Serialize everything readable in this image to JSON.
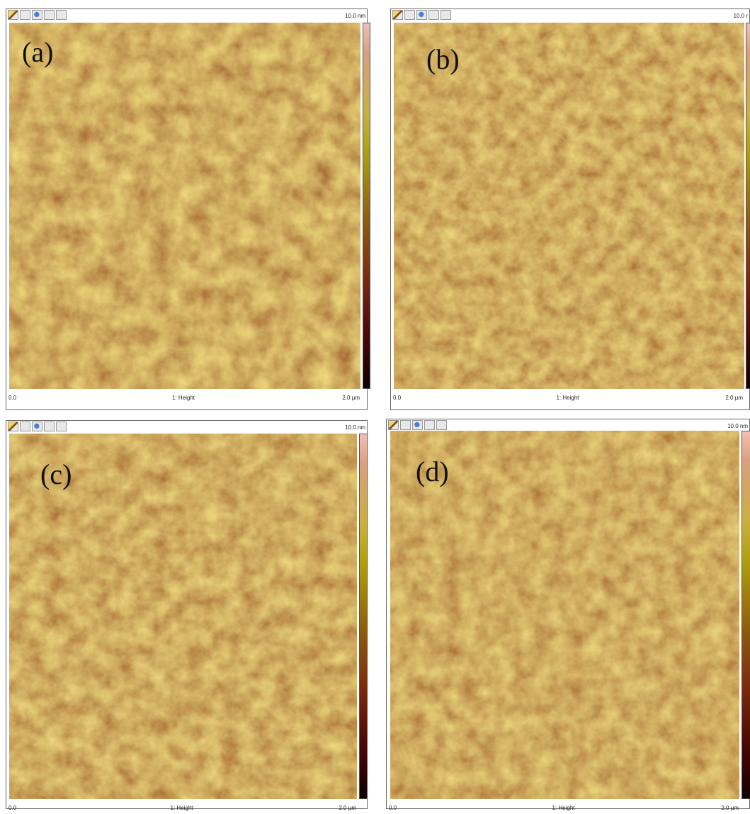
{
  "panels": [
    {
      "label": "(a)",
      "scale_max": "10.0 nm",
      "scale_min": "0.0",
      "channel": "1: Height",
      "scan_size": "2.0 µm"
    },
    {
      "label": "(b)",
      "scale_max": "10.0 r",
      "scale_min": "0.0",
      "channel": "1: Height",
      "scan_size": "2.0 µm"
    },
    {
      "label": "(c)",
      "scale_max": "10.0 nm",
      "scale_min": "0.0",
      "channel": "1: Height",
      "scan_size": "2.0 µm"
    },
    {
      "label": "(d)",
      "scale_max": "10.0 nm",
      "scale_min": "0.0",
      "channel": "1: Height",
      "scan_size": "2.0 µm"
    }
  ]
}
